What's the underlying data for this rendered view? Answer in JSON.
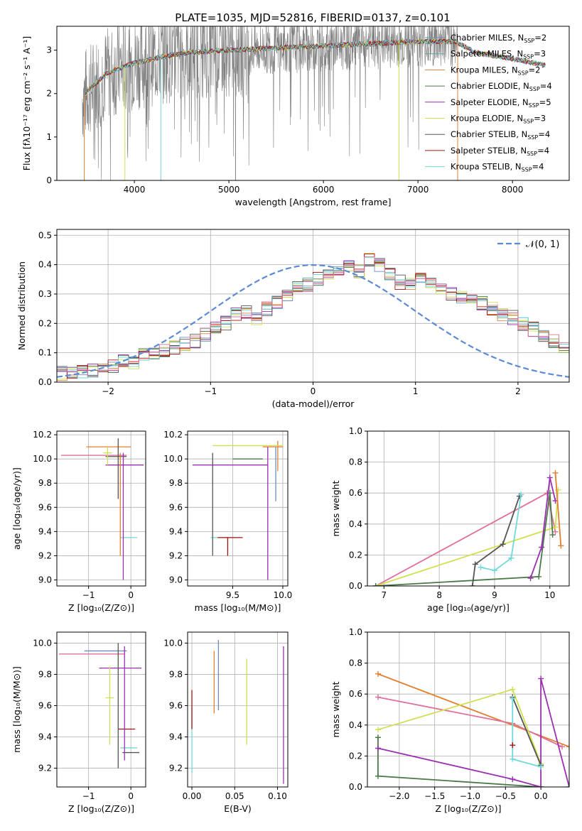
{
  "figure": {
    "title": "PLATE=1035, MJD=52816, FIBERID=0137, z=0.101"
  },
  "colors": {
    "cMILES": "#6c8ebf",
    "sMILES": "#5ea3a3",
    "kMILES": "#e08030",
    "cELODIE": "#4a7a4a",
    "sELODIE": "#9a30b0",
    "kELODIE": "#d0e050",
    "cSTELIB": "#555555",
    "sSTELIB": "#aa1010",
    "kSTELIB": "#70d8d8",
    "pink": "#e0709c",
    "grey": "#808080"
  },
  "chart_data": [
    {
      "id": "spectrum",
      "type": "line",
      "xlabel": "wavelength [Angstrom, rest frame]",
      "ylabel": "Flux [fλ10⁻¹⁷ erg cm⁻² s⁻¹ A⁻¹]",
      "xlim": [
        3180,
        8600
      ],
      "ylim": [
        0,
        3.55
      ],
      "xticks": [
        4000,
        5000,
        6000,
        7000,
        8000
      ],
      "yticks": [
        0,
        1,
        2,
        3
      ],
      "legend": [
        {
          "label": "Chabrier MILES, N",
          "sub": "SSP",
          "n": "=2",
          "color": "cMILES"
        },
        {
          "label": "Salpeter MILES, N",
          "sub": "SSP",
          "n": "=3",
          "color": "sMILES"
        },
        {
          "label": "Kroupa MILES, N",
          "sub": "SSP",
          "n": "=2",
          "color": "kMILES"
        },
        {
          "label": "Chabrier ELODIE, N",
          "sub": "SSP",
          "n": "=4",
          "color": "cELODIE"
        },
        {
          "label": "Salpeter ELODIE, N",
          "sub": "SSP",
          "n": "=5",
          "color": "sELODIE"
        },
        {
          "label": "Kroupa ELODIE, N",
          "sub": "SSP",
          "n": "=3",
          "color": "kELODIE"
        },
        {
          "label": "Chabrier STELIB, N",
          "sub": "SSP",
          "n": "=4",
          "color": "cSTELIB"
        },
        {
          "label": "Salpeter STELIB, N",
          "sub": "SSP",
          "n": "=4",
          "color": "sSTELIB"
        },
        {
          "label": "Kroupa STELIB, N",
          "sub": "SSP",
          "n": "=4",
          "color": "kSTELIB"
        }
      ],
      "continuum": [
        [
          3450,
          1.9
        ],
        [
          3500,
          2.05
        ],
        [
          3700,
          2.45
        ],
        [
          3800,
          2.55
        ],
        [
          4000,
          2.7
        ],
        [
          4300,
          2.85
        ],
        [
          4600,
          2.95
        ],
        [
          5000,
          3.0
        ],
        [
          5500,
          3.05
        ],
        [
          6000,
          3.1
        ],
        [
          6500,
          3.15
        ],
        [
          7000,
          3.2
        ],
        [
          7400,
          3.2
        ],
        [
          7600,
          2.95
        ],
        [
          8000,
          2.8
        ],
        [
          8350,
          2.65
        ]
      ]
    },
    {
      "id": "residuals",
      "type": "histogram",
      "xlabel": "(data-model)/error",
      "ylabel": "Normed distribution",
      "xlim": [
        -2.5,
        2.5
      ],
      "ylim": [
        0,
        0.52
      ],
      "xticks": [
        -2,
        -1,
        0,
        1,
        2
      ],
      "yticks": [
        0.0,
        0.1,
        0.2,
        0.3,
        0.4,
        0.5
      ],
      "legend": "$\\mathcal{N}(0,1)$",
      "legend_label": "𝒩(0, 1)",
      "bin_width": 0.1,
      "bin_start": -2.5,
      "hist": [
        0.03,
        0.03,
        0.035,
        0.04,
        0.05,
        0.055,
        0.07,
        0.07,
        0.09,
        0.1,
        0.11,
        0.12,
        0.13,
        0.14,
        0.16,
        0.18,
        0.2,
        0.23,
        0.24,
        0.22,
        0.25,
        0.27,
        0.3,
        0.32,
        0.33,
        0.35,
        0.36,
        0.38,
        0.4,
        0.38,
        0.42,
        0.4,
        0.37,
        0.34,
        0.33,
        0.36,
        0.34,
        0.32,
        0.3,
        0.29,
        0.28,
        0.27,
        0.25,
        0.23,
        0.22,
        0.2,
        0.18,
        0.16,
        0.14,
        0.12,
        0.1,
        0.09,
        0.08,
        0.07,
        0.06,
        0.05,
        0.04,
        0.035,
        0.03,
        0.03
      ]
    },
    {
      "id": "age_vs_Z",
      "type": "errorbar",
      "xlabel": "Z [log₁₀(Z/Z⊙)]",
      "ylabel": "age  [log₁₀(age/yr)]",
      "xlim": [
        -1.75,
        0.35
      ],
      "ylim": [
        8.95,
        10.23
      ],
      "xticks": [
        -1,
        0
      ],
      "yticks": [
        9.0,
        9.2,
        9.4,
        9.6,
        9.8,
        10.0,
        10.2
      ],
      "points": [
        {
          "x": -0.3,
          "y": 10.1,
          "xerr": [
            0.75,
            0.3
          ],
          "yerr": [
            0.0,
            0.0
          ],
          "color": "kMILES"
        },
        {
          "x": -0.3,
          "y": 10.03,
          "xerr": [
            1.35,
            0.2
          ],
          "yerr": [
            0.0,
            0.0
          ],
          "color": "pink"
        },
        {
          "x": -0.25,
          "y": 9.95,
          "xerr": [
            0.35,
            0.55
          ],
          "yerr": [
            0.0,
            0.0
          ],
          "color": "sELODIE"
        },
        {
          "x": -0.2,
          "y": 9.35,
          "xerr": [
            0.05,
            0.35
          ],
          "yerr": [
            0.0,
            0.0
          ],
          "color": "kSTELIB"
        },
        {
          "x": -0.3,
          "y": 10.02,
          "xerr": [
            0.3,
            0.2
          ],
          "yerr": [
            0.35,
            0.15
          ],
          "color": "cSTELIB"
        },
        {
          "x": -0.18,
          "y": 9.5,
          "xerr": [
            0,
            0
          ],
          "yerr": [
            0.5,
            0.55
          ],
          "color": "sELODIE"
        },
        {
          "x": -0.25,
          "y": 9.7,
          "xerr": [
            0,
            0
          ],
          "yerr": [
            0.5,
            0.35
          ],
          "color": "kMILES"
        },
        {
          "x": -0.55,
          "y": 10.05,
          "xerr": [
            0.1,
            0.1
          ],
          "yerr": [
            0.1,
            0.05
          ],
          "color": "kELODIE"
        }
      ]
    },
    {
      "id": "age_vs_mass",
      "type": "errorbar",
      "xlabel": "mass [log₁₀(M/M⊙)]",
      "ylabel": "",
      "xlim": [
        9.05,
        10.05
      ],
      "ylim": [
        8.95,
        10.23
      ],
      "xticks": [
        9.5,
        10.0
      ],
      "xticklabels": [
        "9.5",
        "10.0"
      ],
      "yticks": [
        9.0,
        9.2,
        9.4,
        9.6,
        9.8,
        10.0,
        10.2
      ],
      "points": [
        {
          "x": 9.95,
          "y": 10.1,
          "xerr": [
            0.15,
            0.05
          ],
          "yerr": [
            0.2,
            0.05
          ],
          "color": "kMILES"
        },
        {
          "x": 9.7,
          "y": 10.11,
          "xerr": [
            0.4,
            0.3
          ],
          "yerr": [
            0,
            0
          ],
          "color": "kELODIE"
        },
        {
          "x": 9.6,
          "y": 9.95,
          "xerr": [
            0.5,
            0.25
          ],
          "yerr": [
            0,
            0
          ],
          "color": "sELODIE"
        },
        {
          "x": 9.38,
          "y": 9.35,
          "xerr": [
            0.1,
            0.15
          ],
          "yerr": [
            0,
            0
          ],
          "color": "kSTELIB"
        },
        {
          "x": 9.45,
          "y": 9.35,
          "xerr": [
            0.1,
            0.15
          ],
          "yerr": [
            0.15,
            0
          ],
          "color": "sSTELIB"
        },
        {
          "x": 9.3,
          "y": 9.6,
          "xerr": [
            0,
            0
          ],
          "yerr": [
            0.4,
            0.45
          ],
          "color": "cSTELIB"
        },
        {
          "x": 9.85,
          "y": 9.6,
          "xerr": [
            0,
            0
          ],
          "yerr": [
            0.6,
            0.5
          ],
          "color": "sELODIE"
        },
        {
          "x": 9.93,
          "y": 9.95,
          "xerr": [
            0,
            0
          ],
          "yerr": [
            0.3,
            0.15
          ],
          "color": "cMILES"
        },
        {
          "x": 9.6,
          "y": 10.0,
          "xerr": [
            0.1,
            0.2
          ],
          "yerr": [
            0,
            0
          ],
          "color": "cELODIE"
        }
      ]
    },
    {
      "id": "weight_vs_age",
      "type": "line",
      "xlabel": "age  [log₁₀(age/yr)]",
      "ylabel": "mass weight",
      "xlim": [
        6.7,
        10.35
      ],
      "ylim": [
        0,
        1.0
      ],
      "xticks": [
        7,
        8,
        9,
        10
      ],
      "yticks": [
        0.0,
        0.2,
        0.4,
        0.6,
        0.8,
        1.0
      ],
      "series": [
        {
          "color": "pink",
          "pts": [
            [
              6.85,
              0
            ],
            [
              9.95,
              0.6
            ],
            [
              10.1,
              0.35
            ]
          ]
        },
        {
          "color": "kELODIE",
          "pts": [
            [
              6.85,
              0
            ],
            [
              10.1,
              0.38
            ],
            [
              10.15,
              0.62
            ]
          ]
        },
        {
          "color": "cELODIE",
          "pts": [
            [
              6.85,
              0
            ],
            [
              9.8,
              0.06
            ],
            [
              10.0,
              0.6
            ],
            [
              10.05,
              0.33
            ]
          ]
        },
        {
          "color": "cSTELIB",
          "pts": [
            [
              8.6,
              0.0
            ],
            [
              8.65,
              0.14
            ],
            [
              9.15,
              0.27
            ],
            [
              9.45,
              0.58
            ]
          ]
        },
        {
          "color": "kSTELIB",
          "pts": [
            [
              8.75,
              0.12
            ],
            [
              9.0,
              0.1
            ],
            [
              9.3,
              0.18
            ],
            [
              9.48,
              0.59
            ]
          ]
        },
        {
          "color": "sELODIE",
          "pts": [
            [
              9.65,
              0.05
            ],
            [
              9.85,
              0.25
            ],
            [
              10.0,
              0.7
            ],
            [
              10.1,
              0.55
            ]
          ]
        },
        {
          "color": "kMILES",
          "pts": [
            [
              10.1,
              0.73
            ],
            [
              10.2,
              0.26
            ]
          ]
        }
      ]
    },
    {
      "id": "mass_vs_Z",
      "type": "errorbar",
      "xlabel": "Z [log₁₀(Z/Z⊙)]",
      "ylabel": "mass [log₁₀(M/M⊙)]",
      "xlim": [
        -1.75,
        0.35
      ],
      "ylim": [
        9.08,
        10.07
      ],
      "xticks": [
        -1,
        0
      ],
      "yticks": [
        9.2,
        9.4,
        9.6,
        9.8,
        10.0
      ],
      "points": [
        {
          "x": -0.3,
          "y": 9.95,
          "xerr": [
            0.8,
            0.2
          ],
          "yerr": [
            0,
            0
          ],
          "color": "cMILES"
        },
        {
          "x": -0.3,
          "y": 9.93,
          "xerr": [
            1.4,
            0.15
          ],
          "yerr": [
            0,
            0
          ],
          "color": "pink"
        },
        {
          "x": -0.25,
          "y": 9.84,
          "xerr": [
            0.5,
            0.5
          ],
          "yerr": [
            0,
            0
          ],
          "color": "sELODIE"
        },
        {
          "x": -0.3,
          "y": 9.45,
          "xerr": [
            0,
            0.4
          ],
          "yerr": [
            0,
            0
          ],
          "color": "sSTELIB"
        },
        {
          "x": -0.25,
          "y": 9.33,
          "xerr": [
            0.0,
            0.4
          ],
          "yerr": [
            0,
            0
          ],
          "color": "kSTELIB"
        },
        {
          "x": -0.2,
          "y": 9.3,
          "xerr": [
            0,
            0.4
          ],
          "yerr": [
            0,
            0
          ],
          "color": "cSTELIB"
        },
        {
          "x": -0.3,
          "y": 9.6,
          "xerr": [
            0,
            0
          ],
          "yerr": [
            0.4,
            0.4
          ],
          "color": "cSTELIB"
        },
        {
          "x": -0.15,
          "y": 9.6,
          "xerr": [
            0,
            0
          ],
          "yerr": [
            0.35,
            0.38
          ],
          "color": "sELODIE"
        },
        {
          "x": -0.5,
          "y": 9.65,
          "xerr": [
            0.1,
            0.1
          ],
          "yerr": [
            0.3,
            0.2
          ],
          "color": "kELODIE"
        }
      ]
    },
    {
      "id": "mass_vs_EBV",
      "type": "errorbar",
      "xlabel": "E(B-V)",
      "ylabel": "",
      "xlim": [
        -0.005,
        0.112
      ],
      "ylim": [
        9.08,
        10.07
      ],
      "xticks": [
        0.0,
        0.05,
        0.1
      ],
      "xticklabels": [
        "0.00",
        "0.05",
        "0.10"
      ],
      "yticks": [
        9.2,
        9.4,
        9.6,
        9.8,
        10.0
      ],
      "points": [
        {
          "x": 0.0,
          "y": 9.4,
          "xerr": [
            0,
            0
          ],
          "yerr": [
            0.23,
            0.2
          ],
          "color": "kSTELIB"
        },
        {
          "x": 0.0,
          "y": 9.55,
          "xerr": [
            0,
            0
          ],
          "yerr": [
            0.1,
            0.15
          ],
          "color": "sSTELIB"
        },
        {
          "x": 0.026,
          "y": 9.75,
          "xerr": [
            0,
            0
          ],
          "yerr": [
            0.2,
            0.2
          ],
          "color": "kMILES"
        },
        {
          "x": 0.031,
          "y": 9.8,
          "xerr": [
            0,
            0
          ],
          "yerr": [
            0.23,
            0.22
          ],
          "color": "cMILES"
        },
        {
          "x": 0.064,
          "y": 9.6,
          "xerr": [
            0,
            0
          ],
          "yerr": [
            0.25,
            0.3
          ],
          "color": "kELODIE"
        },
        {
          "x": 0.107,
          "y": 9.55,
          "xerr": [
            0,
            0
          ],
          "yerr": [
            0.45,
            0.43
          ],
          "color": "sELODIE"
        }
      ]
    },
    {
      "id": "weight_vs_Z",
      "type": "line",
      "xlabel": "Z [log₁₀(Z/Z⊙)]",
      "ylabel": "mass weight",
      "xlim": [
        -2.45,
        0.4
      ],
      "ylim": [
        0,
        1.0
      ],
      "xticks": [
        -2.0,
        -1.5,
        -1.0,
        -0.5,
        0.0
      ],
      "xticklabels": [
        "−2.0",
        "−1.5",
        "−1.0",
        "−0.5",
        "0.0"
      ],
      "yticks": [
        0.0,
        0.2,
        0.4,
        0.6,
        0.8,
        1.0
      ],
      "series": [
        {
          "color": "kMILES",
          "pts": [
            [
              -2.3,
              0.73
            ],
            [
              0.4,
              0.26
            ]
          ]
        },
        {
          "color": "pink",
          "pts": [
            [
              -2.3,
              0.58
            ],
            [
              -0.4,
              0.41
            ],
            [
              0.3,
              0.26
            ]
          ]
        },
        {
          "color": "kELODIE",
          "pts": [
            [
              -2.3,
              0.37
            ],
            [
              -0.4,
              0.63
            ],
            [
              0.0,
              0.15
            ]
          ]
        },
        {
          "color": "cELODIE",
          "pts": [
            [
              -2.3,
              0.32
            ],
            [
              -2.3,
              0.07
            ],
            [
              0.0,
              0.0
            ]
          ]
        },
        {
          "color": "sELODIE",
          "pts": [
            [
              -2.3,
              0.25
            ],
            [
              -0.4,
              0.05
            ],
            [
              0.0,
              0.0
            ],
            [
              0.0,
              0.7
            ],
            [
              0.4,
              0.0
            ]
          ]
        },
        {
          "color": "cSTELIB",
          "pts": [
            [
              -0.4,
              0.58
            ],
            [
              0.0,
              0.14
            ]
          ]
        },
        {
          "color": "kSTELIB",
          "pts": [
            [
              -0.4,
              0.57
            ],
            [
              -0.4,
              0.18
            ],
            [
              0.0,
              0.13
            ]
          ]
        },
        {
          "color": "sSTELIB",
          "pts": [
            [
              -0.4,
              0.27
            ]
          ]
        }
      ]
    }
  ]
}
